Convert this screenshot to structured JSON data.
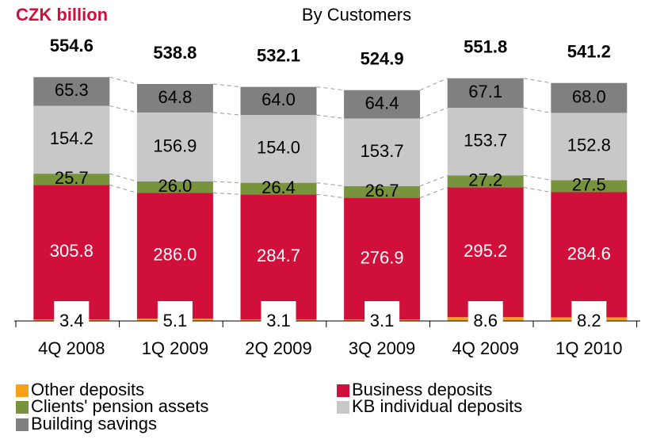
{
  "chart_data": {
    "type": "bar",
    "stacked": true,
    "title": "By Customers",
    "unit_label": "CZK billion",
    "categories": [
      "4Q 2008",
      "1Q 2009",
      "2Q 2009",
      "3Q 2009",
      "4Q 2009",
      "1Q 2010"
    ],
    "totals": [
      554.6,
      538.8,
      532.1,
      524.9,
      551.8,
      541.2
    ],
    "series": [
      {
        "name": "Other deposits",
        "color": "#f7a11a",
        "values": [
          3.4,
          5.1,
          3.1,
          3.1,
          8.6,
          8.2
        ]
      },
      {
        "name": "Business deposits",
        "color": "#d0103a",
        "values": [
          305.8,
          286.0,
          284.7,
          276.9,
          295.2,
          284.6
        ]
      },
      {
        "name": "Clients' pension assets",
        "color": "#77933c",
        "values": [
          25.7,
          26.0,
          26.4,
          26.7,
          27.2,
          27.5
        ]
      },
      {
        "name": "KB individual deposits",
        "color": "#c8c8c8",
        "values": [
          154.2,
          156.9,
          154.0,
          153.7,
          153.7,
          152.8
        ]
      },
      {
        "name": "Building savings",
        "color": "#808080",
        "values": [
          65.3,
          64.8,
          64.0,
          64.4,
          67.1,
          68.0
        ]
      }
    ],
    "value_labels": {
      "1": [
        "305.8",
        "286.0",
        "284.7",
        "276.9",
        "295.2",
        "284.6"
      ],
      "2": [
        "25.7",
        "26.0",
        "26.4",
        "26.7",
        "27.2",
        "27.5"
      ],
      "3": [
        "154.2",
        "156.9",
        "154.0",
        "153.7",
        "153.7",
        "152.8"
      ],
      "4": [
        "65.3",
        "64.8",
        "64.0",
        "64.4",
        "67.1",
        "68.0"
      ]
    }
  }
}
